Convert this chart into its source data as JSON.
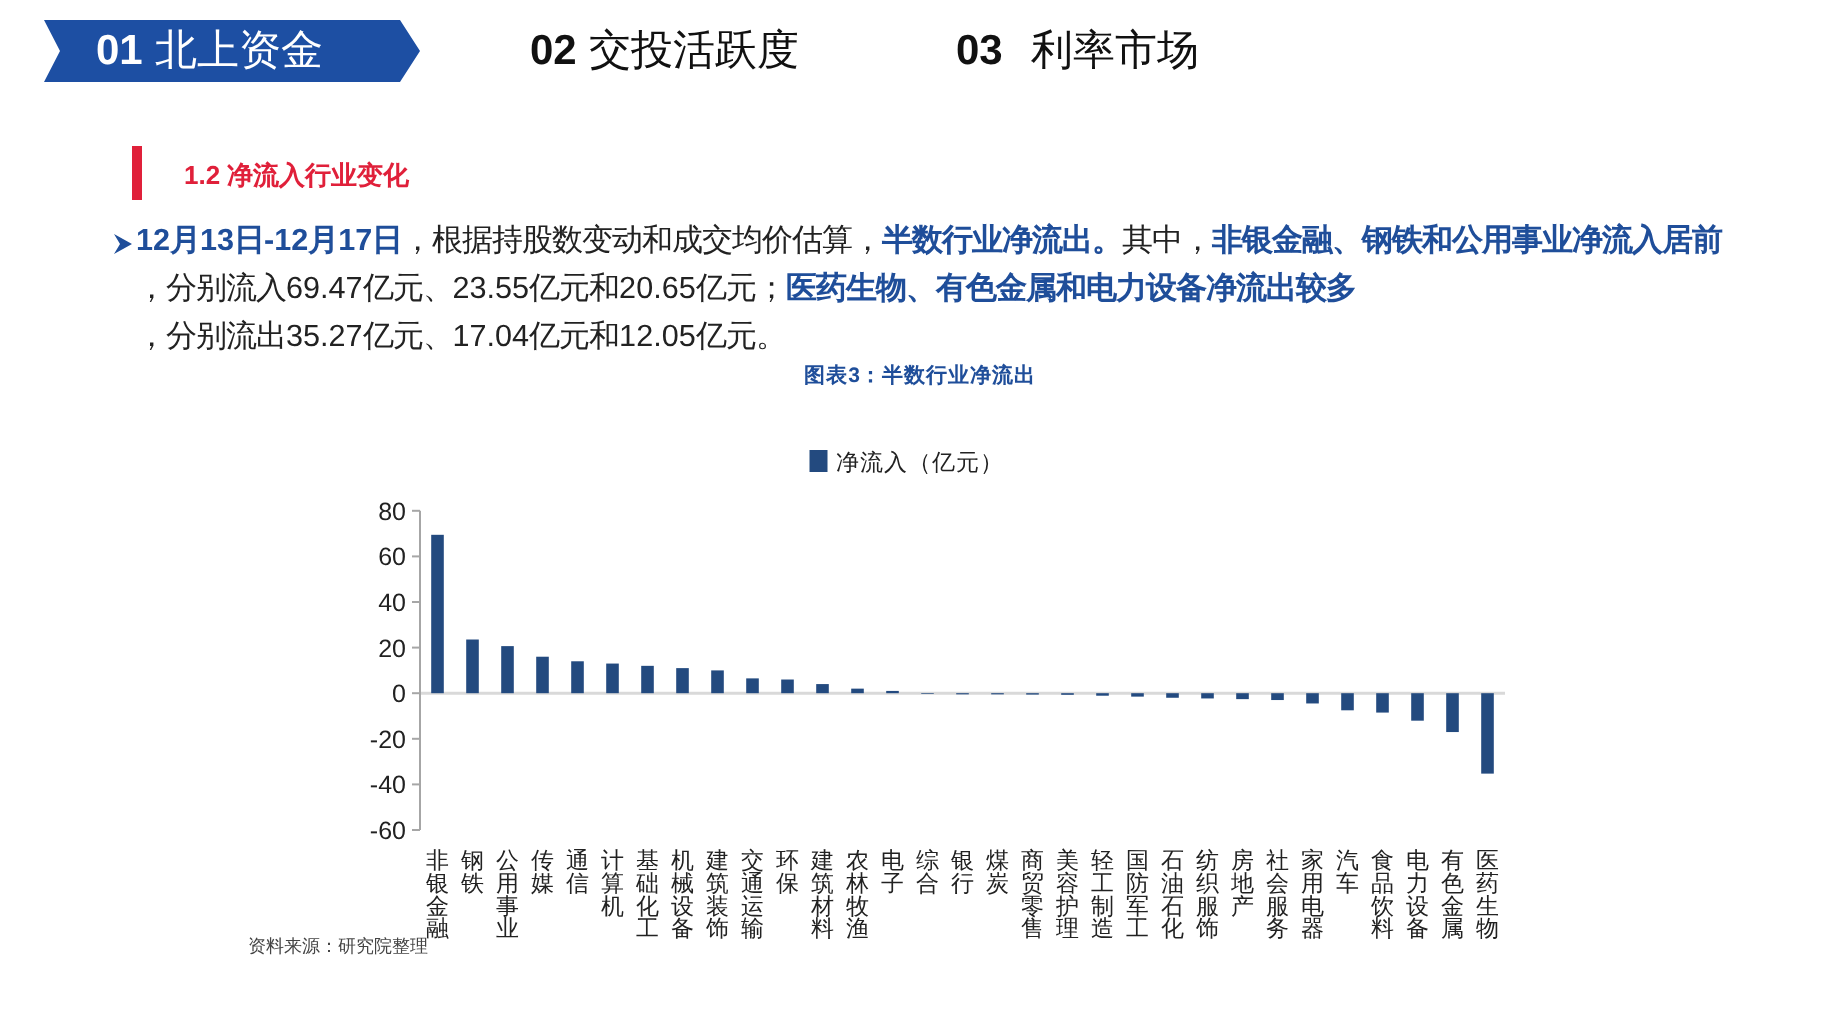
{
  "chart_data": {
    "type": "bar",
    "title": "图表3：半数行业净流出",
    "subtitle": "1.2 净流入行业变化",
    "annotations": [
      "01 北上资金",
      "02 交投活跃度",
      "03 利率市场",
      "12月13日-12月17日",
      "，根据持股数变动和成交均价估算，",
      "半数行业净流出。",
      "其中，",
      "非银金融、钢铁和公用事业净流入居前",
      "，分别流入69.47亿元、23.55亿元和20.65亿元；",
      "医药生物、有色金属和电力设备净流出较多",
      "，分别流出35.27亿元、17.04亿元和12.05亿元。",
      "资料来源：研究院整理"
    ],
    "categories": [
      "非银金融",
      "钢铁",
      "公用事业",
      "传媒",
      "通信",
      "计算机",
      "基础化工",
      "机械设备",
      "建筑装饰",
      "交通运输",
      "环保",
      "建筑材料",
      "农林牧渔",
      "电子",
      "综合",
      "银行",
      "煤炭",
      "商贸零售",
      "美容护理",
      "轻工制造",
      "国防军工",
      "石油石化",
      "纺织服饰",
      "房地产",
      "社会服务",
      "家用电器",
      "汽车",
      "食品饮料",
      "电力设备",
      "有色金属",
      "医药生物"
    ],
    "series": [
      {
        "name": "净流入（亿元）",
        "color": "#234a7f",
        "values": [
          69.47,
          23.55,
          20.65,
          16,
          14,
          13,
          12,
          11,
          10,
          6.5,
          6,
          4,
          2,
          1,
          -0.3,
          -0.5,
          -0.5,
          -0.6,
          -0.7,
          -1.1,
          -1.5,
          -2,
          -2.3,
          -2.6,
          -3,
          -4.5,
          -7.5,
          -8.5,
          -12.05,
          -17.04,
          -35.27
        ]
      }
    ],
    "ylim": [
      -60,
      80
    ],
    "yticks": [
      -60,
      -40,
      -20,
      0,
      20,
      40,
      60,
      80
    ],
    "legend": "top"
  }
}
